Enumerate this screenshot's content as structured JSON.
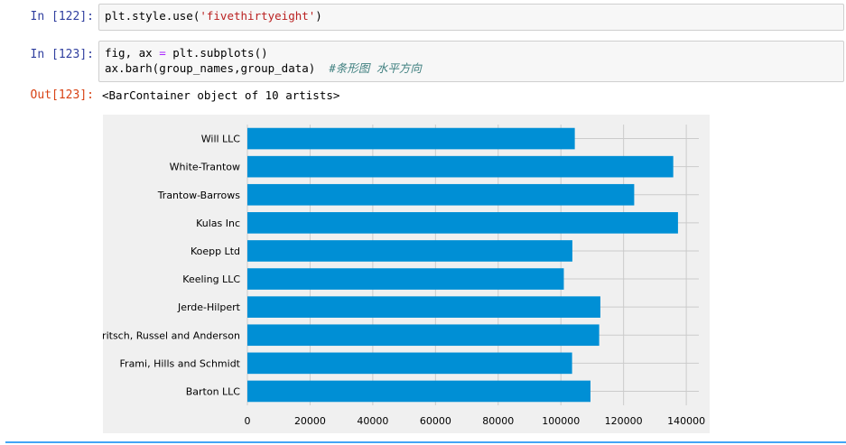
{
  "cells": [
    {
      "prompt": "In  [122]:",
      "code": {
        "pre": "plt.style.use(",
        "string": "'fivethirtyeight'",
        "post": ")"
      }
    },
    {
      "prompt": "In  [123]:",
      "line1": {
        "pre": "fig,  ax ",
        "op": "=",
        "post": " plt.subplots()"
      },
      "line2": {
        "code": "ax.barh(group_names,group_data)  ",
        "comment": "#条形图 水平方向"
      }
    }
  ],
  "output": {
    "prompt": "Out[123]:",
    "text": "<BarContainer object of 10 artists>"
  },
  "chart_data": {
    "type": "bar",
    "orientation": "horizontal",
    "style": "fivethirtyeight",
    "categories": [
      "Barton LLC",
      "Frami, Hills and Schmidt",
      "Fritsch, Russel and Anderson",
      "Jerde-Hilpert",
      "Keeling LLC",
      "Koepp Ltd",
      "Kulas Inc",
      "Trantow-Barrows",
      "White-Trantow",
      "Will LLC"
    ],
    "values": [
      109438,
      103569,
      112214,
      112591,
      100934,
      103660,
      137351,
      123381,
      135841,
      104437
    ],
    "xticks": [
      "0",
      "20000",
      "40000",
      "60000",
      "80000",
      "100000",
      "120000",
      "140000"
    ],
    "xlim": [
      0,
      144000
    ],
    "grid": true,
    "colors": {
      "bar": "#008fd5",
      "background": "#f0f0f0",
      "grid": "#cbcbcb"
    }
  }
}
